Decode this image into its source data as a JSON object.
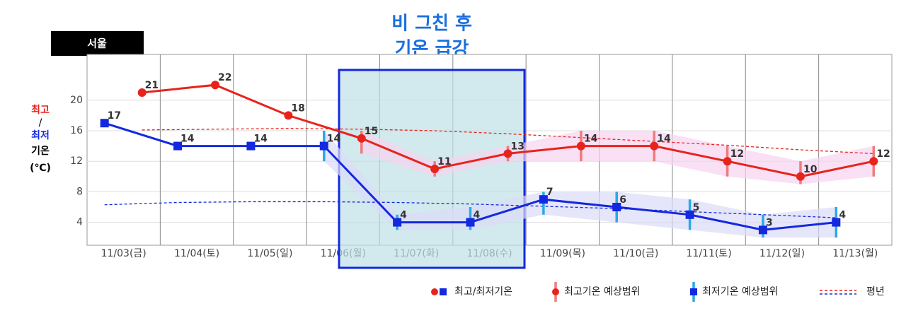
{
  "chart_data": {
    "type": "line",
    "title": "서울",
    "annotation": [
      "비 그친 후",
      "기온 급강"
    ],
    "y_label": {
      "high": "최고",
      "sep": "/",
      "low": "최저",
      "word": "기온",
      "unit": "(℃)"
    },
    "categories": [
      "11/03(금)",
      "11/04(토)",
      "11/05(일)",
      "11/06(월)",
      "11/07(화)",
      "11/08(수)",
      "11/09(목)",
      "11/10(금)",
      "11/11(토)",
      "11/12(일)",
      "11/13(월)"
    ],
    "ylim": [
      1,
      26
    ],
    "yticks": [
      4,
      8,
      12,
      16,
      20
    ],
    "grid": true,
    "highs": {
      "color": "#e8231c",
      "range_color": "#ef7b7b",
      "band_color": "#f6d3ef",
      "values": [
        21,
        22,
        18,
        15,
        11,
        13,
        14,
        14,
        12,
        10,
        12
      ],
      "range": [
        null,
        null,
        null,
        [
          13,
          16
        ],
        [
          10,
          12
        ],
        [
          12,
          14
        ],
        [
          12,
          16
        ],
        [
          12,
          16
        ],
        [
          10,
          14
        ],
        [
          9,
          12
        ],
        [
          10,
          14
        ]
      ]
    },
    "lows": {
      "color": "#1428e0",
      "range_color": "#2aa8e6",
      "band_color": "#dcdcf8",
      "values": [
        17,
        14,
        14,
        14,
        4,
        4,
        7,
        6,
        5,
        3,
        4
      ],
      "range": [
        null,
        null,
        null,
        [
          12,
          16
        ],
        [
          3,
          5
        ],
        [
          3,
          6
        ],
        [
          5,
          8
        ],
        [
          4,
          8
        ],
        [
          3,
          7
        ],
        [
          2,
          5
        ],
        [
          2,
          6
        ]
      ]
    },
    "normal_high": {
      "color": "#e8231c",
      "values": [
        16.1,
        16.2,
        16.3,
        16.2,
        16,
        15.6,
        15.1,
        14.6,
        14.1,
        13.5,
        13
      ]
    },
    "normal_low": {
      "color": "#1428e0",
      "values": [
        6.3,
        6.6,
        6.7,
        6.7,
        6.6,
        6.4,
        6.1,
        5.8,
        5.4,
        5,
        4.6
      ]
    },
    "legend": [
      "최고/최저기온",
      "최고기온 예상범위",
      "최저기온 예상범위",
      "평년"
    ]
  }
}
